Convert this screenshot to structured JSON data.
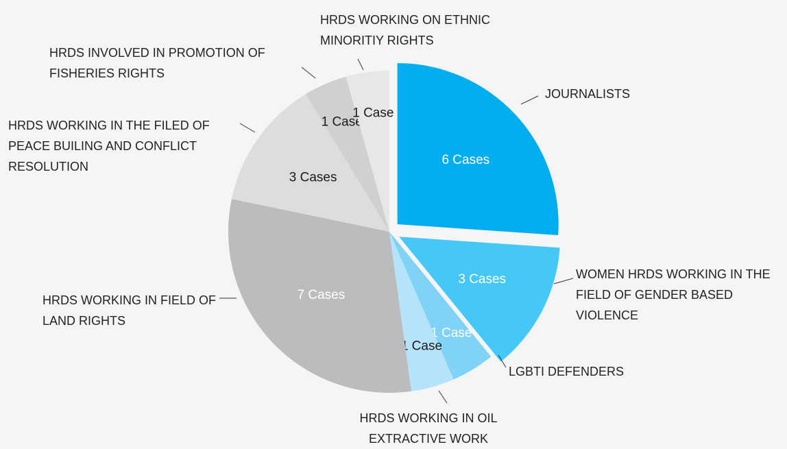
{
  "chart_data": {
    "type": "pie",
    "categories": [
      "JOURNALISTS",
      "WOMEN HRDS WORKING IN THE FIELD OF GENDER BASED VIOLENCE",
      "LGBTI DEFENDERS",
      "HRDS WORKING IN OIL EXTRACTIVE WORK",
      "HRDS WORKING IN FIELD OF LAND RIGHTS",
      "HRDS WORKING IN THE FILED OF PEACE BUILING AND CONFLICT RESOLUTION",
      "HRDS INVOLVED IN PROMOTION OF FISHERIES RIGHTS",
      "HRDS WORKING ON ETHNIC MINORITIY RIGHTS"
    ],
    "values": [
      6,
      3,
      1,
      1,
      7,
      3,
      1,
      1
    ],
    "value_labels": [
      "6 Cases",
      "3 Cases",
      "1 Case",
      "1 Case",
      "7 Cases",
      "3 Cases",
      "1 Case",
      "1 Case"
    ],
    "colors": [
      "#00aeef",
      "#45c8f5",
      "#80d3f7",
      "#b5e3f9",
      "#bbbcbe",
      "#dcddde",
      "#cfd0d1",
      "#e6e7e8"
    ],
    "label_colors": [
      "#ffffff",
      "#ffffff",
      "#ffffff",
      "#1a1a1a",
      "#ffffff",
      "#1a1a1a",
      "#1a1a1a",
      "#1a1a1a"
    ]
  }
}
